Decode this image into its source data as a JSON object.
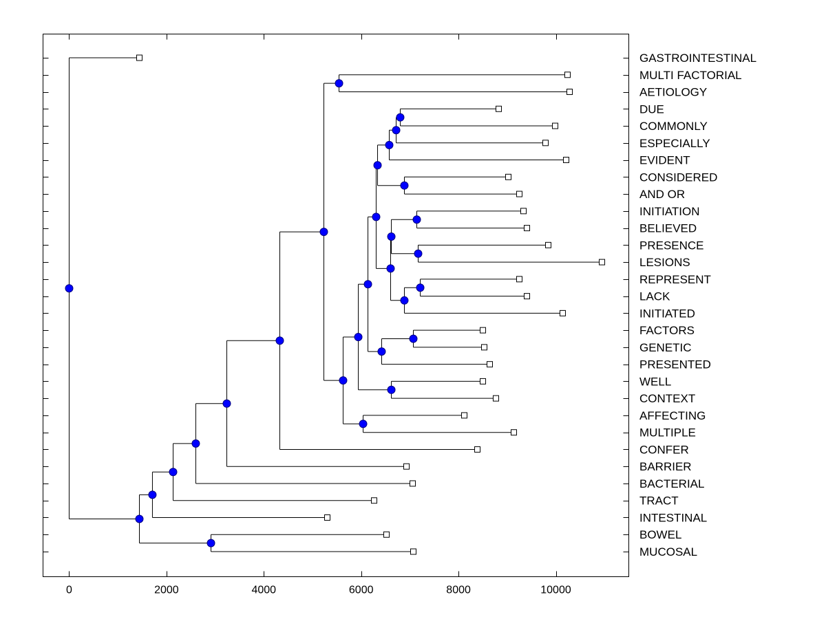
{
  "chart_data": {
    "type": "dendrogram",
    "title": "",
    "xlabel": "",
    "ylabel": "",
    "xlim": [
      -537,
      11499
    ],
    "x_ticks": [
      0,
      2000,
      4000,
      6000,
      8000,
      10000
    ],
    "x_tick_labels": [
      "0",
      "2000",
      "4000",
      "6000",
      "8000",
      "10000"
    ],
    "grid": false,
    "legend": null,
    "leaves": [
      {
        "label": "GASTROINTESTINAL",
        "value": 1443
      },
      {
        "label": "MULTI FACTORIAL",
        "value": 10240
      },
      {
        "label": "AETIOLOGY",
        "value": 10283
      },
      {
        "label": "DUE",
        "value": 8826
      },
      {
        "label": "COMMONLY",
        "value": 9986
      },
      {
        "label": "ESPECIALLY",
        "value": 9788
      },
      {
        "label": "EVIDENT",
        "value": 10212
      },
      {
        "label": "CONSIDERED",
        "value": 9024
      },
      {
        "label": "AND OR",
        "value": 9250
      },
      {
        "label": "INITIATION",
        "value": 9335
      },
      {
        "label": "BELIEVED",
        "value": 9406
      },
      {
        "label": "PRESENCE",
        "value": 9844
      },
      {
        "label": "LESIONS",
        "value": 10948
      },
      {
        "label": "REPRESENT",
        "value": 9250
      },
      {
        "label": "LACK",
        "value": 9406
      },
      {
        "label": "INITIATED",
        "value": 10141
      },
      {
        "label": "FACTORS",
        "value": 8501
      },
      {
        "label": "GENETIC",
        "value": 8529
      },
      {
        "label": "PRESENTED",
        "value": 8642
      },
      {
        "label": "WELL",
        "value": 8501
      },
      {
        "label": "CONTEXT",
        "value": 8769
      },
      {
        "label": "AFFECTING",
        "value": 8119
      },
      {
        "label": "MULTIPLE",
        "value": 9137
      },
      {
        "label": "CONFER",
        "value": 8388
      },
      {
        "label": "BARRIER",
        "value": 6931
      },
      {
        "label": "BACTERIAL",
        "value": 7058
      },
      {
        "label": "TRACT",
        "value": 6266
      },
      {
        "label": "INTESTINAL",
        "value": 5304
      },
      {
        "label": "BOWEL",
        "value": 6520
      },
      {
        "label": "MUCOSAL",
        "value": 7072
      }
    ],
    "tree": {
      "value": 0,
      "children": [
        {
          "leaf": 0
        },
        {
          "value": 1443,
          "children": [
            {
              "value": 1711,
              "children": [
                {
                  "value": 2136,
                  "children": [
                    {
                      "value": 2602,
                      "children": [
                        {
                          "value": 3239,
                          "children": [
                            {
                              "value": 4328,
                              "children": [
                                {
                                  "value": 5233,
                                  "children": [
                                    {
                                      "value": 5545,
                                      "children": [
                                        {
                                          "leaf": 1
                                        },
                                        {
                                          "leaf": 2
                                        }
                                      ]
                                    },
                                    {
                                      "value": 5629,
                                      "children": [
                                        {
                                          "value": 5941,
                                          "children": [
                                            {
                                              "value": 6139,
                                              "children": [
                                                {
                                                  "value": 6308,
                                                  "children": [
                                                    {
                                                      "value": 6337,
                                                      "children": [
                                                        {
                                                          "value": 6577,
                                                          "children": [
                                                            {
                                                              "value": 6719,
                                                              "children": [
                                                                {
                                                                  "value": 6803,
                                                                  "children": [
                                                                    {
                                                                      "leaf": 3
                                                                    },
                                                                    {
                                                                      "leaf": 4
                                                                    }
                                                                  ]
                                                                },
                                                                {
                                                                  "leaf": 5
                                                                }
                                                              ]
                                                            },
                                                            {
                                                              "leaf": 6
                                                            }
                                                          ]
                                                        },
                                                        {
                                                          "value": 6888,
                                                          "children": [
                                                            {
                                                              "leaf": 7
                                                            },
                                                            {
                                                              "leaf": 8
                                                            }
                                                          ]
                                                        }
                                                      ]
                                                    },
                                                    {
                                                      "value": 6605,
                                                      "children": [
                                                        {
                                                          "value": 6620,
                                                          "children": [
                                                            {
                                                              "value": 7143,
                                                              "children": [
                                                                {
                                                                  "leaf": 9
                                                                },
                                                                {
                                                                  "leaf": 10
                                                                }
                                                              ]
                                                            },
                                                            {
                                                              "value": 7171,
                                                              "children": [
                                                                {
                                                                  "leaf": 11
                                                                },
                                                                {
                                                                  "leaf": 12
                                                                }
                                                              ]
                                                            }
                                                          ]
                                                        },
                                                        {
                                                          "value": 6888,
                                                          "children": [
                                                            {
                                                              "value": 7214,
                                                              "children": [
                                                                {
                                                                  "leaf": 13
                                                                },
                                                                {
                                                                  "leaf": 14
                                                                }
                                                              ]
                                                            },
                                                            {
                                                              "leaf": 15
                                                            }
                                                          ]
                                                        }
                                                      ]
                                                    }
                                                  ]
                                                },
                                                {
                                                  "value": 6421,
                                                  "children": [
                                                    {
                                                      "value": 7072,
                                                      "children": [
                                                        {
                                                          "leaf": 16
                                                        },
                                                        {
                                                          "leaf": 17
                                                        }
                                                      ]
                                                    },
                                                    {
                                                      "leaf": 18
                                                    }
                                                  ]
                                                }
                                              ]
                                            },
                                            {
                                              "value": 6620,
                                              "children": [
                                                {
                                                  "leaf": 19
                                                },
                                                {
                                                  "leaf": 20
                                                }
                                              ]
                                            }
                                          ]
                                        },
                                        {
                                          "value": 6040,
                                          "children": [
                                            {
                                              "leaf": 21
                                            },
                                            {
                                              "leaf": 22
                                            }
                                          ]
                                        }
                                      ]
                                    }
                                  ]
                                },
                                {
                                  "leaf": 23
                                }
                              ]
                            },
                            {
                              "leaf": 24
                            }
                          ]
                        },
                        {
                          "leaf": 25
                        }
                      ]
                    },
                    {
                      "leaf": 26
                    }
                  ]
                },
                {
                  "leaf": 27
                }
              ]
            },
            {
              "value": 2914,
              "children": [
                {
                  "leaf": 28
                },
                {
                  "leaf": 29
                }
              ]
            }
          ]
        }
      ]
    },
    "colors": {
      "node": "#0000ff",
      "node_outline": "#000080",
      "line": "#000000",
      "leaf_marker_fill": "#ffffff"
    }
  }
}
